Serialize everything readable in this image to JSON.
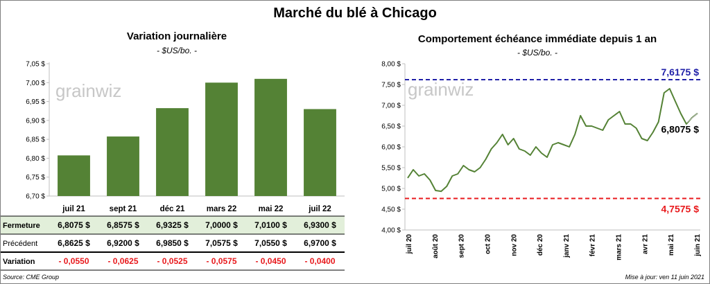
{
  "title": "Marché du blé à Chicago",
  "left": {
    "title": "Variation journalière",
    "unit": "- $US/bo. -"
  },
  "right": {
    "title": "Comportement échéance immédiate depuis 1 an",
    "unit": "- $US/bo. -"
  },
  "watermark": "grainwiz",
  "source": "Source: CME Group",
  "updated": "Mise à jour: ven 11 juin 2021",
  "table": {
    "rows": [
      {
        "label": "Fermeture",
        "values": [
          "6,8075  $",
          "6,8575  $",
          "6,9325  $",
          "7,0000  $",
          "7,0100  $",
          "6,9300  $"
        ]
      },
      {
        "label": "Précédent",
        "values": [
          "6,8625  $",
          "6,9200  $",
          "6,9850  $",
          "7,0575  $",
          "7,0550  $",
          "6,9700  $"
        ]
      },
      {
        "label": "Variation",
        "values": [
          "- 0,0550",
          "- 0,0625",
          "- 0,0525",
          "- 0,0575",
          "- 0,0450",
          "- 0,0400"
        ]
      }
    ]
  },
  "colors": {
    "bar": "#548235",
    "line": "#548235",
    "high": "#1f1fa8",
    "low": "#e8191c",
    "negative": "#e8191c",
    "row_highlight": "#e2efda"
  },
  "chart_data": [
    {
      "type": "bar",
      "title": "Variation journalière",
      "ylabel": "- $US/bo. -",
      "categories": [
        "juil 21",
        "sept 21",
        "déc 21",
        "mars 22",
        "mai 22",
        "juil 22"
      ],
      "values": [
        6.8075,
        6.8575,
        6.9325,
        7.0,
        7.01,
        6.93
      ],
      "ylim": [
        6.7,
        7.05
      ],
      "yticks": [
        "6,70 $",
        "6,75 $",
        "6,80 $",
        "6,85 $",
        "6,90 $",
        "6,95 $",
        "7,00 $",
        "7,05 $"
      ],
      "grid": false
    },
    {
      "type": "line",
      "title": "Comportement échéance immédiate depuis 1 an",
      "ylabel": "- $US/bo. -",
      "ylim": [
        4.0,
        8.0
      ],
      "yticks": [
        "4,00 $",
        "4,50 $",
        "5,00 $",
        "5,50 $",
        "6,00 $",
        "6,50 $",
        "7,00 $",
        "7,50 $",
        "8,00 $"
      ],
      "xticks": [
        "juil 20",
        "août 20",
        "sept 20",
        "oct 20",
        "nov 20",
        "déc 20",
        "janv 21",
        "févr 21",
        "mars 21",
        "avr 21",
        "mai 21",
        "juin 21"
      ],
      "high": {
        "value": 7.6175,
        "label": "7,6175  $"
      },
      "low": {
        "value": 4.7575,
        "label": "4,7575  $"
      },
      "last": {
        "value": 6.8075,
        "label": "6,8075  $"
      },
      "x": [
        "2020-06-12",
        "2020-06-19",
        "2020-06-26",
        "2020-07-03",
        "2020-07-10",
        "2020-07-17",
        "2020-07-24",
        "2020-07-31",
        "2020-08-07",
        "2020-08-14",
        "2020-08-21",
        "2020-08-28",
        "2020-09-04",
        "2020-09-11",
        "2020-09-18",
        "2020-09-25",
        "2020-10-02",
        "2020-10-09",
        "2020-10-16",
        "2020-10-23",
        "2020-10-30",
        "2020-11-06",
        "2020-11-13",
        "2020-11-20",
        "2020-11-27",
        "2020-12-04",
        "2020-12-11",
        "2020-12-18",
        "2020-12-25",
        "2021-01-01",
        "2021-01-08",
        "2021-01-15",
        "2021-01-22",
        "2021-01-29",
        "2021-02-05",
        "2021-02-12",
        "2021-02-19",
        "2021-02-26",
        "2021-03-05",
        "2021-03-12",
        "2021-03-19",
        "2021-03-26",
        "2021-04-02",
        "2021-04-09",
        "2021-04-16",
        "2021-04-23",
        "2021-04-30",
        "2021-05-07",
        "2021-05-14",
        "2021-05-21",
        "2021-05-28",
        "2021-06-04",
        "2021-06-11"
      ],
      "y": [
        5.25,
        5.45,
        5.3,
        5.35,
        5.2,
        4.95,
        4.93,
        5.05,
        5.3,
        5.35,
        5.55,
        5.45,
        5.4,
        5.5,
        5.7,
        5.95,
        6.1,
        6.3,
        6.05,
        6.2,
        5.95,
        5.9,
        5.8,
        6.0,
        5.85,
        5.75,
        6.05,
        6.1,
        6.05,
        6.0,
        6.3,
        6.75,
        6.5,
        6.5,
        6.45,
        6.4,
        6.65,
        6.75,
        6.85,
        6.55,
        6.55,
        6.45,
        6.2,
        6.15,
        6.35,
        6.6,
        7.3,
        7.4,
        7.1,
        6.8,
        6.55,
        6.7,
        6.8075
      ]
    }
  ]
}
